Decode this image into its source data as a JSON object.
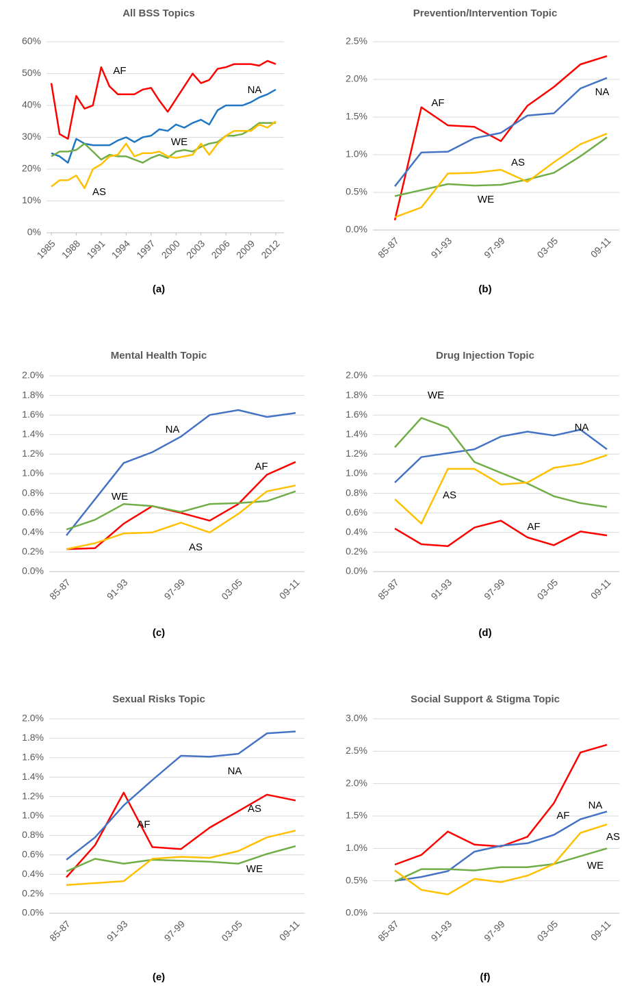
{
  "chart_data": [
    {
      "type": "line",
      "title": "All BSS Topics",
      "caption": "(a)",
      "x": [
        1985,
        1986,
        1987,
        1988,
        1989,
        1990,
        1991,
        1992,
        1993,
        1994,
        1995,
        1996,
        1997,
        1998,
        1999,
        2000,
        2001,
        2002,
        2003,
        2004,
        2005,
        2006,
        2007,
        2008,
        2009,
        2010,
        2011,
        2012
      ],
      "xlim": [
        1985,
        2012
      ],
      "xticks": [
        1985,
        1988,
        1991,
        1994,
        1997,
        2000,
        2003,
        2006,
        2009,
        2012
      ],
      "ylim": [
        0,
        60
      ],
      "yticks": [
        {
          "value": 0,
          "label": "0%"
        },
        {
          "value": 10,
          "label": "10%"
        },
        {
          "value": 20,
          "label": "20%"
        },
        {
          "value": 30,
          "label": "30%"
        },
        {
          "value": 40,
          "label": "40%"
        },
        {
          "value": 50,
          "label": "50%"
        },
        {
          "value": 60,
          "label": "60%"
        }
      ],
      "grid": true,
      "series": [
        {
          "name": "AF",
          "color": "#ff0000",
          "values": [
            47,
            31,
            29.5,
            43,
            39,
            40,
            52,
            46,
            43.5,
            43.5,
            43.5,
            45,
            45.5,
            41.5,
            38,
            42,
            46,
            50,
            47,
            48,
            51.5,
            52,
            53,
            53,
            53,
            52.5,
            54,
            53
          ]
        },
        {
          "name": "NA",
          "color": "#1f77c4",
          "values": [
            25,
            24,
            22,
            29.5,
            28,
            27.5,
            27.5,
            27.5,
            29,
            30,
            28.5,
            30,
            30.5,
            32.5,
            32,
            34,
            33,
            34.5,
            35.5,
            34,
            38.5,
            40,
            40,
            40,
            41,
            42.5,
            43.5,
            45
          ]
        },
        {
          "name": "WE",
          "color": "#70ad47",
          "values": [
            24,
            25.5,
            25.5,
            26,
            28,
            25.5,
            23,
            24.5,
            24,
            24,
            23,
            22,
            23.5,
            24.5,
            23.5,
            25.5,
            26,
            25.5,
            27,
            28,
            28.5,
            30.5,
            30.5,
            31,
            32.5,
            34.5,
            34.5,
            34.5
          ]
        },
        {
          "name": "AS",
          "color": "#ffc000",
          "values": [
            14.5,
            16.5,
            16.5,
            18,
            14,
            20,
            21.5,
            24,
            24.5,
            28,
            24,
            25,
            25,
            25.5,
            24,
            23.5,
            24,
            24.5,
            28,
            24.5,
            28,
            30.5,
            32,
            32,
            32,
            34,
            33,
            35
          ]
        }
      ]
    },
    {
      "type": "line",
      "title": "Prevention/Intervention Topic",
      "caption": "(b)",
      "categories": [
        "85-87",
        null,
        "91-93",
        null,
        "97-99",
        null,
        "03-05",
        null,
        "09-11"
      ],
      "ylim": [
        0,
        2.5
      ],
      "yticks": [
        {
          "value": 0,
          "label": "0.0%"
        },
        {
          "value": 0.5,
          "label": "0.5%"
        },
        {
          "value": 1,
          "label": "1.0%"
        },
        {
          "value": 1.5,
          "label": "1.5%"
        },
        {
          "value": 2,
          "label": "2.0%"
        },
        {
          "value": 2.5,
          "label": "2.5%"
        }
      ],
      "grid": true,
      "series": [
        {
          "name": "AF",
          "color": "#ff0000",
          "values": [
            0.13,
            1.63,
            1.39,
            1.37,
            1.18,
            1.65,
            1.9,
            2.2,
            2.31
          ]
        },
        {
          "name": "NA",
          "color": "#4472c4",
          "values": [
            0.58,
            1.03,
            1.04,
            1.22,
            1.29,
            1.52,
            1.55,
            1.88,
            2.02
          ]
        },
        {
          "name": "WE",
          "color": "#70ad47",
          "values": [
            0.45,
            0.53,
            0.61,
            0.59,
            0.6,
            0.67,
            0.76,
            0.98,
            1.23
          ]
        },
        {
          "name": "AS",
          "color": "#ffc000",
          "values": [
            0.17,
            0.3,
            0.75,
            0.76,
            0.8,
            0.64,
            0.9,
            1.14,
            1.28
          ]
        }
      ]
    },
    {
      "type": "line",
      "title": "Mental Health Topic",
      "caption": "(c)",
      "categories": [
        "85-87",
        null,
        "91-93",
        null,
        "97-99",
        null,
        "03-05",
        null,
        "09-11"
      ],
      "ylim": [
        0,
        2
      ],
      "yticks": [
        {
          "value": 0,
          "label": "0.0%"
        },
        {
          "value": 0.2,
          "label": "0.2%"
        },
        {
          "value": 0.4,
          "label": "0.4%"
        },
        {
          "value": 0.6,
          "label": "0.6%"
        },
        {
          "value": 0.8,
          "label": "0.8%"
        },
        {
          "value": 1,
          "label": "1.0%"
        },
        {
          "value": 1.2,
          "label": "1.2%"
        },
        {
          "value": 1.4,
          "label": "1.4%"
        },
        {
          "value": 1.6,
          "label": "1.6%"
        },
        {
          "value": 1.8,
          "label": "1.8%"
        },
        {
          "value": 2,
          "label": "2.0%"
        }
      ],
      "grid": true,
      "series": [
        {
          "name": "AF",
          "color": "#ff0000",
          "values": [
            0.23,
            0.24,
            0.49,
            0.67,
            0.6,
            0.52,
            0.69,
            0.99,
            1.12
          ]
        },
        {
          "name": "NA",
          "color": "#4472c4",
          "values": [
            0.37,
            0.74,
            1.11,
            1.22,
            1.38,
            1.6,
            1.65,
            1.58,
            1.62
          ]
        },
        {
          "name": "WE",
          "color": "#70ad47",
          "values": [
            0.43,
            0.53,
            0.69,
            0.67,
            0.61,
            0.69,
            0.7,
            0.72,
            0.82
          ]
        },
        {
          "name": "AS",
          "color": "#ffc000",
          "values": [
            0.23,
            0.29,
            0.39,
            0.4,
            0.5,
            0.4,
            0.59,
            0.82,
            0.88
          ]
        }
      ]
    },
    {
      "type": "line",
      "title": "Drug Injection Topic",
      "caption": "(d)",
      "categories": [
        "85-87",
        null,
        "91-93",
        null,
        "97-99",
        null,
        "03-05",
        null,
        "09-11"
      ],
      "ylim": [
        0,
        2
      ],
      "yticks": [
        {
          "value": 0,
          "label": "0.0%"
        },
        {
          "value": 0.2,
          "label": "0.2%"
        },
        {
          "value": 0.4,
          "label": "0.4%"
        },
        {
          "value": 0.6,
          "label": "0.6%"
        },
        {
          "value": 0.8,
          "label": "0.8%"
        },
        {
          "value": 1,
          "label": "1.0%"
        },
        {
          "value": 1.2,
          "label": "1.2%"
        },
        {
          "value": 1.4,
          "label": "1.4%"
        },
        {
          "value": 1.6,
          "label": "1.6%"
        },
        {
          "value": 1.8,
          "label": "1.8%"
        },
        {
          "value": 2,
          "label": "2.0%"
        }
      ],
      "grid": true,
      "series": [
        {
          "name": "AF",
          "color": "#ff0000",
          "values": [
            0.44,
            0.28,
            0.26,
            0.45,
            0.52,
            0.35,
            0.27,
            0.41,
            0.37
          ]
        },
        {
          "name": "NA",
          "color": "#4472c4",
          "values": [
            0.91,
            1.17,
            1.21,
            1.25,
            1.38,
            1.43,
            1.39,
            1.45,
            1.25
          ]
        },
        {
          "name": "WE",
          "color": "#70ad47",
          "values": [
            1.27,
            1.57,
            1.47,
            1.12,
            1.01,
            0.9,
            0.77,
            0.7,
            0.66
          ]
        },
        {
          "name": "AS",
          "color": "#ffc000",
          "values": [
            0.74,
            0.49,
            1.05,
            1.05,
            0.89,
            0.91,
            1.06,
            1.1,
            1.19
          ]
        }
      ]
    },
    {
      "type": "line",
      "title": "Sexual Risks Topic",
      "caption": "(e)",
      "categories": [
        "85-87",
        null,
        "91-93",
        null,
        "97-99",
        null,
        "03-05",
        null,
        "09-11"
      ],
      "ylim": [
        0,
        2
      ],
      "yticks": [
        {
          "value": 0,
          "label": "0.0%"
        },
        {
          "value": 0.2,
          "label": "0.2%"
        },
        {
          "value": 0.4,
          "label": "0.4%"
        },
        {
          "value": 0.6,
          "label": "0.6%"
        },
        {
          "value": 0.8,
          "label": "0.8%"
        },
        {
          "value": 1,
          "label": "1.0%"
        },
        {
          "value": 1.2,
          "label": "1.2%"
        },
        {
          "value": 1.4,
          "label": "1.4%"
        },
        {
          "value": 1.6,
          "label": "1.6%"
        },
        {
          "value": 1.8,
          "label": "1.8%"
        },
        {
          "value": 2,
          "label": "2.0%"
        }
      ],
      "grid": true,
      "series": [
        {
          "name": "AF",
          "color": "#ff0000",
          "values": [
            0.37,
            0.7,
            1.24,
            0.68,
            0.66,
            0.88,
            1.05,
            1.22,
            1.16
          ]
        },
        {
          "name": "NA",
          "color": "#4472c4",
          "values": [
            0.55,
            0.78,
            1.11,
            1.37,
            1.62,
            1.61,
            1.64,
            1.85,
            1.87
          ]
        },
        {
          "name": "WE",
          "color": "#70ad47",
          "values": [
            0.43,
            0.56,
            0.51,
            0.55,
            0.54,
            0.53,
            0.51,
            0.61,
            0.69
          ]
        },
        {
          "name": "AS",
          "color": "#ffc000",
          "values": [
            0.29,
            0.31,
            0.33,
            0.56,
            0.58,
            0.57,
            0.64,
            0.78,
            0.85
          ]
        }
      ]
    },
    {
      "type": "line",
      "title": "Social Support & Stigma Topic",
      "caption": "(f)",
      "categories": [
        "85-87",
        null,
        "91-93",
        null,
        "97-99",
        null,
        "03-05",
        null,
        "09-11"
      ],
      "ylim": [
        0,
        3
      ],
      "yticks": [
        {
          "value": 0,
          "label": "0.0%"
        },
        {
          "value": 0.5,
          "label": "0.5%"
        },
        {
          "value": 1,
          "label": "1.0%"
        },
        {
          "value": 1.5,
          "label": "1.5%"
        },
        {
          "value": 2,
          "label": "2.0%"
        },
        {
          "value": 2.5,
          "label": "2.5%"
        },
        {
          "value": 3,
          "label": "3.0%"
        }
      ],
      "grid": true,
      "series": [
        {
          "name": "AF",
          "color": "#ff0000",
          "values": [
            0.75,
            0.9,
            1.26,
            1.06,
            1.03,
            1.18,
            1.7,
            2.48,
            2.6
          ]
        },
        {
          "name": "NA",
          "color": "#4472c4",
          "values": [
            0.5,
            0.56,
            0.65,
            0.95,
            1.04,
            1.08,
            1.21,
            1.45,
            1.57
          ]
        },
        {
          "name": "WE",
          "color": "#70ad47",
          "values": [
            0.49,
            0.68,
            0.68,
            0.66,
            0.71,
            0.71,
            0.76,
            0.88,
            1.0
          ]
        },
        {
          "name": "AS",
          "color": "#ffc000",
          "values": [
            0.66,
            0.36,
            0.29,
            0.53,
            0.48,
            0.58,
            0.76,
            1.24,
            1.37
          ]
        }
      ]
    }
  ]
}
